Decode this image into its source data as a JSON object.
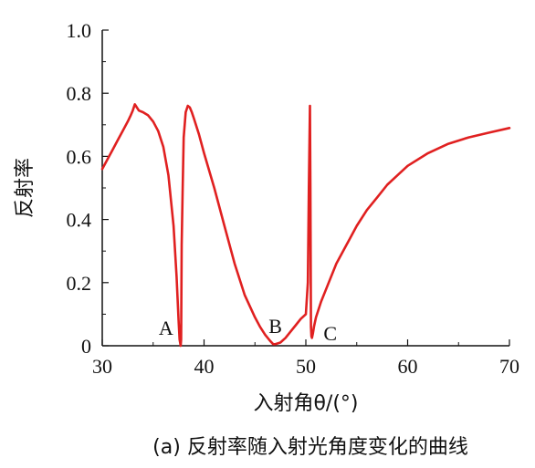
{
  "chart_data": {
    "type": "line",
    "title": "",
    "caption": "(a) 反射率随入射光角度变化的曲线",
    "xlabel": "入射角θ/(°)",
    "ylabel": "反射率",
    "xlim": [
      30,
      70
    ],
    "ylim": [
      0,
      1.0
    ],
    "x_ticks": [
      30,
      40,
      50,
      60,
      70
    ],
    "x_tick_labels": [
      "30",
      "40",
      "50",
      "60",
      "70"
    ],
    "y_ticks": [
      0,
      0.2,
      0.4,
      0.6,
      0.8,
      1.0
    ],
    "y_tick_labels": [
      "0",
      "0.2",
      "0.4",
      "0.6",
      "0.8",
      "1.0"
    ],
    "grid": false,
    "legend": "none",
    "series": [
      {
        "color": "#e02020",
        "x": [
          30,
          30.5,
          31,
          31.5,
          32,
          32.5,
          32.8,
          33.0,
          33.2,
          33.6,
          34,
          34.5,
          35,
          35.5,
          36,
          36.5,
          37,
          37.3,
          37.5,
          37.6,
          37.7,
          37.75,
          37.8,
          37.9,
          38.0,
          38.2,
          38.4,
          38.6,
          38.8,
          39,
          39.5,
          40,
          41,
          42,
          43,
          44,
          45,
          45.5,
          46,
          46.5,
          46.8,
          47,
          47.5,
          48,
          48.5,
          49,
          49.5,
          50,
          50.2,
          50.3,
          50.4,
          50.45,
          50.5,
          50.55,
          50.6,
          50.7,
          50.8,
          51,
          51.5,
          52,
          53,
          54,
          55,
          56,
          57,
          58,
          59,
          60,
          62,
          64,
          66,
          68,
          70
        ],
        "y": [
          0.56,
          0.59,
          0.62,
          0.65,
          0.68,
          0.71,
          0.73,
          0.745,
          0.765,
          0.745,
          0.74,
          0.73,
          0.71,
          0.68,
          0.63,
          0.54,
          0.38,
          0.22,
          0.08,
          0.02,
          0.0,
          0.02,
          0.32,
          0.5,
          0.66,
          0.74,
          0.76,
          0.755,
          0.74,
          0.72,
          0.67,
          0.61,
          0.5,
          0.38,
          0.26,
          0.16,
          0.09,
          0.06,
          0.035,
          0.015,
          0.005,
          0.005,
          0.01,
          0.025,
          0.045,
          0.065,
          0.085,
          0.1,
          0.2,
          0.5,
          0.76,
          0.5,
          0.06,
          0.03,
          0.025,
          0.04,
          0.06,
          0.09,
          0.14,
          0.18,
          0.26,
          0.32,
          0.38,
          0.43,
          0.47,
          0.51,
          0.54,
          0.57,
          0.61,
          0.64,
          0.66,
          0.675,
          0.69
        ]
      }
    ],
    "annotations": [
      {
        "text": "A",
        "x": 37.7,
        "y": 0
      },
      {
        "text": "B",
        "x": 47,
        "y": 0
      },
      {
        "text": "C",
        "x": 50.6,
        "y": 0
      }
    ]
  }
}
